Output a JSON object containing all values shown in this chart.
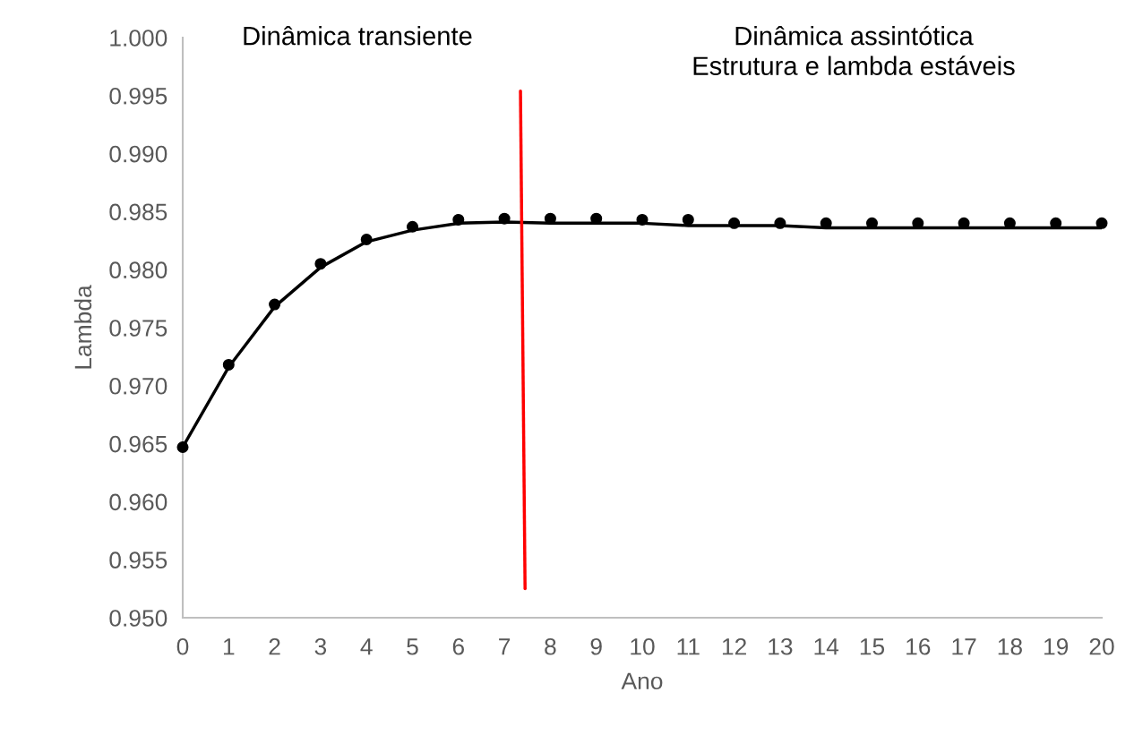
{
  "chart_data": {
    "type": "line",
    "xlabel": "Ano",
    "ylabel": "Lambda",
    "x": [
      0,
      1,
      2,
      3,
      4,
      5,
      6,
      7,
      8,
      9,
      10,
      11,
      12,
      13,
      14,
      15,
      16,
      17,
      18,
      19,
      20
    ],
    "xlim": [
      0,
      20
    ],
    "xticks": [
      0,
      1,
      2,
      3,
      4,
      5,
      6,
      7,
      8,
      9,
      10,
      11,
      12,
      13,
      14,
      15,
      16,
      17,
      18,
      19,
      20
    ],
    "ylim": [
      0.95,
      1.0
    ],
    "yticks": [
      {
        "value": 0.95,
        "label": "0.950"
      },
      {
        "value": 0.955,
        "label": "0.955"
      },
      {
        "value": 0.96,
        "label": "0.960"
      },
      {
        "value": 0.965,
        "label": "0.965"
      },
      {
        "value": 0.97,
        "label": "0.970"
      },
      {
        "value": 0.975,
        "label": "0.975"
      },
      {
        "value": 0.98,
        "label": "0.980"
      },
      {
        "value": 0.985,
        "label": "0.985"
      },
      {
        "value": 0.99,
        "label": "0.990"
      },
      {
        "value": 0.995,
        "label": "0.995"
      },
      {
        "value": 1.0,
        "label": "1.000"
      }
    ],
    "series": [
      {
        "color": "#000000",
        "line_style": "solid",
        "marker": "none",
        "values": [
          0.9647,
          0.9716,
          0.9768,
          0.9802,
          0.9824,
          0.9834,
          0.984,
          0.9841,
          0.984,
          0.984,
          0.984,
          0.9838,
          0.9838,
          0.9838,
          0.9836,
          0.9836,
          0.9836,
          0.9836,
          0.9836,
          0.9836,
          0.9836
        ]
      },
      {
        "type": "scatter",
        "color": "#000000",
        "marker": "circle",
        "values": [
          0.9647,
          0.9718,
          0.977,
          0.9805,
          0.9826,
          0.9837,
          0.9843,
          0.9844,
          0.9844,
          0.9844,
          0.9843,
          0.9843,
          0.984,
          0.984,
          0.984,
          0.984,
          0.984,
          0.984,
          0.984,
          0.984,
          0.984
        ]
      },
      {
        "color": "#ff0000",
        "line_style": "solid",
        "marker": "none",
        "x": [
          7.35,
          7.45
        ],
        "values": [
          0.9954,
          0.9525
        ]
      }
    ],
    "annotations": [
      "Dinâmica transiente",
      "Dinâmica assintótica\nEstrutura e lambda estáveis"
    ],
    "grid": false,
    "legend": false
  }
}
